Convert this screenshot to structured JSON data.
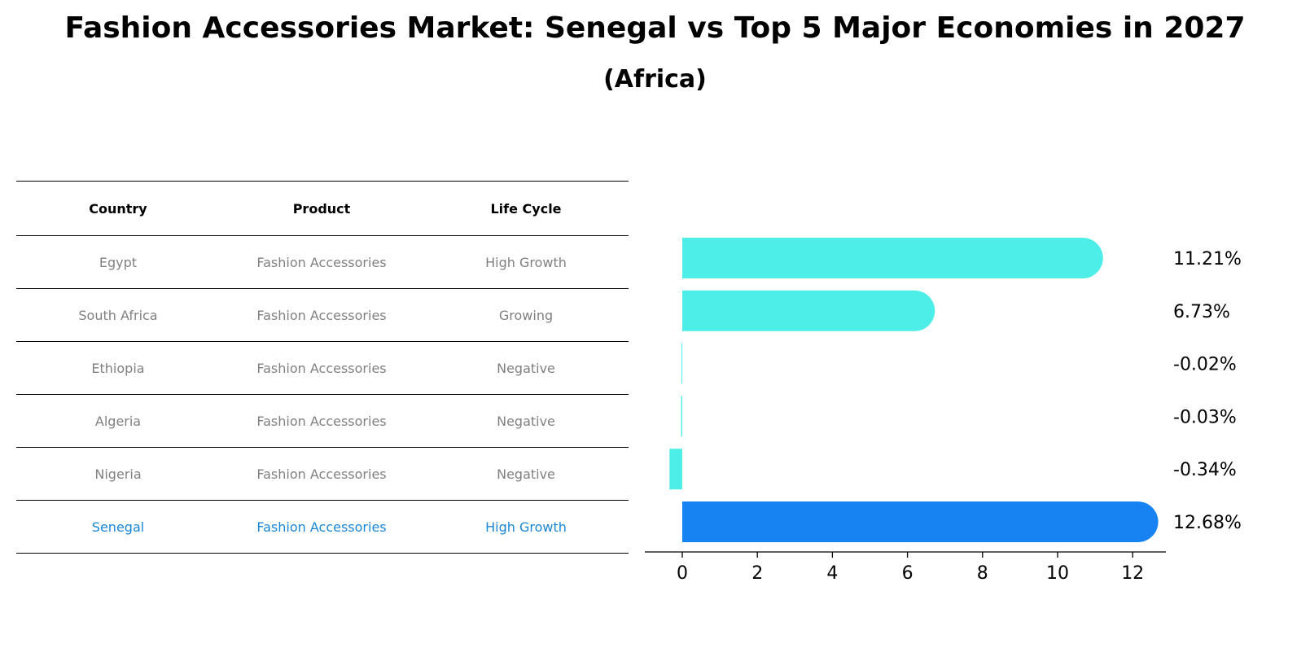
{
  "title": "Fashion Accessories Market: Senegal vs Top 5 Major Economies in 2027",
  "subtitle": "(Africa)",
  "table": {
    "headers": [
      "Country",
      "Product",
      "Life Cycle"
    ],
    "rows": [
      {
        "country": "Egypt",
        "product": "Fashion Accessories",
        "life_cycle": "High Growth"
      },
      {
        "country": "South Africa",
        "product": "Fashion Accessories",
        "life_cycle": "Growing"
      },
      {
        "country": "Ethiopia",
        "product": "Fashion Accessories",
        "life_cycle": "Negative"
      },
      {
        "country": "Algeria",
        "product": "Fashion Accessories",
        "life_cycle": "Negative"
      },
      {
        "country": "Nigeria",
        "product": "Fashion Accessories",
        "life_cycle": "Negative"
      },
      {
        "country": "Senegal",
        "product": "Fashion Accessories",
        "life_cycle": "High Growth"
      }
    ]
  },
  "chart_data": {
    "type": "bar",
    "orientation": "horizontal",
    "categories": [
      "Egypt",
      "South Africa",
      "Ethiopia",
      "Algeria",
      "Nigeria",
      "Senegal"
    ],
    "values": [
      11.21,
      6.73,
      -0.02,
      -0.03,
      -0.34,
      12.68
    ],
    "value_labels": [
      "11.21%",
      "6.73%",
      "-0.02%",
      "-0.03%",
      "-0.34%",
      "12.68%"
    ],
    "xlim": [
      -1,
      13.4
    ],
    "xticks": [
      0,
      2,
      4,
      6,
      8,
      10,
      12
    ],
    "colors": {
      "default": "#4deee8",
      "highlight": "#1783f3"
    },
    "highlight_index": 5,
    "grid": false
  }
}
